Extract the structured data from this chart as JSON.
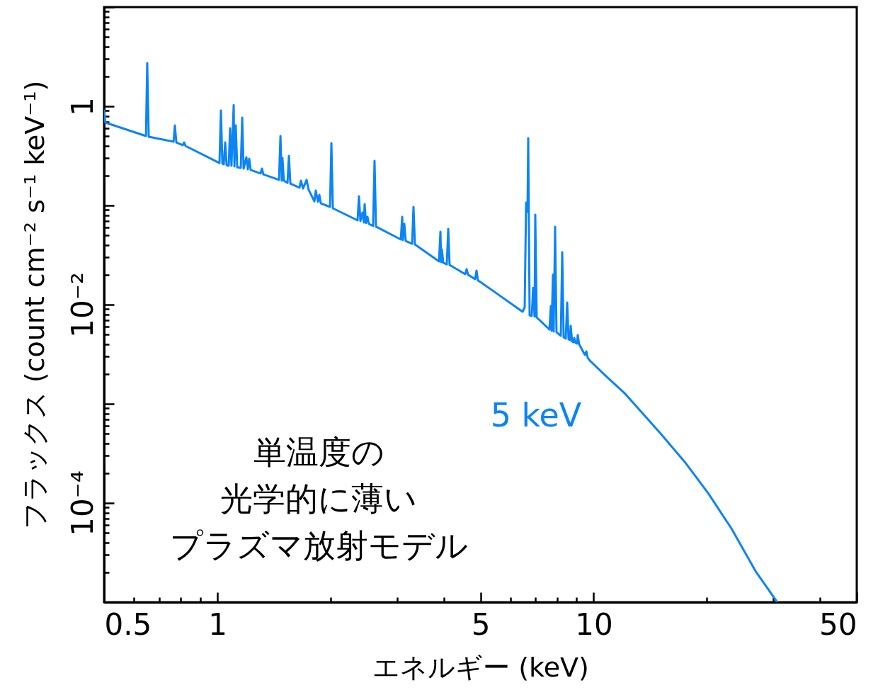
{
  "chart_data": {
    "type": "line",
    "xlabel": "エネルギー (keV)",
    "ylabel": "フラックス (count cm⁻² s⁻¹ keV⁻¹)",
    "log": "xy",
    "grid": false,
    "xlim": [
      0.5,
      50
    ],
    "ylim": [
      1e-05,
      10
    ],
    "xticks": [
      0.5,
      {
        "value": 0.6,
        "label": null
      },
      {
        "value": 0.7,
        "label": null
      },
      {
        "value": 0.8,
        "label": null
      },
      {
        "value": 0.9,
        "label": null
      },
      1,
      {
        "value": 2,
        "label": null
      },
      {
        "value": 3,
        "label": null
      },
      {
        "value": 4,
        "label": null
      },
      5,
      {
        "value": 6,
        "label": null
      },
      {
        "value": 7,
        "label": null
      },
      {
        "value": 8,
        "label": null
      },
      {
        "value": 9,
        "label": null
      },
      10,
      {
        "value": 20,
        "label": null
      },
      {
        "value": 30,
        "label": null
      },
      {
        "value": 40,
        "label": null
      },
      50
    ],
    "yticks": [
      {
        "value": 1e-05,
        "label": null
      },
      {
        "value": 2e-05,
        "label": null
      },
      {
        "value": 3e-05,
        "label": null
      },
      {
        "value": 4e-05,
        "label": null
      },
      {
        "value": 5e-05,
        "label": null
      },
      {
        "value": 6e-05,
        "label": null
      },
      {
        "value": 7e-05,
        "label": null
      },
      {
        "value": 8e-05,
        "label": null
      },
      {
        "value": 9e-05,
        "label": null
      },
      {
        "value": 0.0001,
        "label": "10⁻⁴"
      },
      {
        "value": 0.0002,
        "label": null
      },
      {
        "value": 0.0003,
        "label": null
      },
      {
        "value": 0.0004,
        "label": null
      },
      {
        "value": 0.0005,
        "label": null
      },
      {
        "value": 0.0006,
        "label": null
      },
      {
        "value": 0.0007,
        "label": null
      },
      {
        "value": 0.0008,
        "label": null
      },
      {
        "value": 0.0009,
        "label": null
      },
      {
        "value": 0.001,
        "label": null
      },
      {
        "value": 0.002,
        "label": null
      },
      {
        "value": 0.003,
        "label": null
      },
      {
        "value": 0.004,
        "label": null
      },
      {
        "value": 0.005,
        "label": null
      },
      {
        "value": 0.006,
        "label": null
      },
      {
        "value": 0.007,
        "label": null
      },
      {
        "value": 0.008,
        "label": null
      },
      {
        "value": 0.009,
        "label": null
      },
      {
        "value": 0.01,
        "label": "10⁻²"
      },
      {
        "value": 0.02,
        "label": null
      },
      {
        "value": 0.03,
        "label": null
      },
      {
        "value": 0.04,
        "label": null
      },
      {
        "value": 0.05,
        "label": null
      },
      {
        "value": 0.06,
        "label": null
      },
      {
        "value": 0.07,
        "label": null
      },
      {
        "value": 0.08,
        "label": null
      },
      {
        "value": 0.09,
        "label": null
      },
      {
        "value": 0.1,
        "label": null
      },
      {
        "value": 0.2,
        "label": null
      },
      {
        "value": 0.3,
        "label": null
      },
      {
        "value": 0.4,
        "label": null
      },
      {
        "value": 0.5,
        "label": null
      },
      {
        "value": 0.6,
        "label": null
      },
      {
        "value": 0.7,
        "label": null
      },
      {
        "value": 0.8,
        "label": null
      },
      {
        "value": 0.9,
        "label": null
      },
      1,
      {
        "value": 2,
        "label": null
      },
      {
        "value": 3,
        "label": null
      },
      {
        "value": 4,
        "label": null
      },
      {
        "value": 5,
        "label": null
      },
      {
        "value": 6,
        "label": null
      },
      {
        "value": 7,
        "label": null
      },
      {
        "value": 8,
        "label": null
      },
      {
        "value": 9,
        "label": null
      },
      {
        "value": 10,
        "label": null
      }
    ],
    "series": [
      {
        "name": "5 keV",
        "color": "#0b84f6",
        "x": [
          0.5,
          0.504,
          0.646,
          0.651,
          0.657,
          0.765,
          0.771,
          0.778,
          0.809,
          0.816,
          0.823,
          1.013,
          1.022,
          1.031,
          1.04,
          1.049,
          1.058,
          1.072,
          1.081,
          1.09,
          1.105,
          1.11,
          1.119,
          1.129,
          1.154,
          1.164,
          1.174,
          1.194,
          1.205,
          1.215,
          1.226,
          1.302,
          1.314,
          1.325,
          1.458,
          1.471,
          1.483,
          1.489,
          1.502,
          1.536,
          1.549,
          1.563,
          1.653,
          1.667,
          1.689,
          1.726,
          1.748,
          1.81,
          1.826,
          1.85,
          1.866,
          1.883,
          1.992,
          2.009,
          2.027,
          2.358,
          2.378,
          2.399,
          2.43,
          2.451,
          2.462,
          2.483,
          2.505,
          2.527,
          2.593,
          2.616,
          2.639,
          3.072,
          3.098,
          3.112,
          3.139,
          3.166,
          3.292,
          3.32,
          3.349,
          3.881,
          3.915,
          3.932,
          3.949,
          3.983,
          4.07,
          4.106,
          4.141,
          4.556,
          4.596,
          4.636,
          4.84,
          4.882,
          4.924,
          4.967,
          5.488,
          6.47,
          6.555,
          6.612,
          6.669,
          6.698,
          6.756,
          6.844,
          6.904,
          6.964,
          6.994,
          7.055,
          7.627,
          7.693,
          7.727,
          7.794,
          7.828,
          7.896,
          7.964,
          8.177,
          8.248,
          8.32,
          8.428,
          8.501,
          8.575,
          8.649,
          8.687,
          8.762,
          8.838,
          8.876,
          8.953,
          9.031,
          9.07,
          9.149,
          9.477,
          9.56,
          9.639,
          9.763,
          10.83,
          12.13,
          15.06,
          17.45,
          20.13,
          23.23,
          25,
          26.91,
          30.64
        ],
        "values": [
          0.906,
          0.685,
          0.501,
          2.73,
          0.493,
          0.439,
          0.641,
          0.432,
          0.405,
          0.432,
          0.398,
          0.268,
          0.906,
          0.264,
          0.26,
          0.432,
          0.255,
          0.251,
          0.601,
          0.251,
          1.03,
          0.247,
          0.641,
          0.243,
          0.239,
          0.769,
          0.235,
          0.306,
          0.231,
          0.296,
          0.228,
          0.21,
          0.235,
          0.206,
          0.181,
          0.501,
          0.178,
          0.301,
          0.178,
          0.169,
          0.316,
          0.166,
          0.151,
          0.178,
          0.148,
          0.181,
          0.144,
          0.11,
          0.141,
          0.109,
          0.128,
          0.105,
          0.0968,
          0.425,
          0.0936,
          0.0708,
          0.124,
          0.0697,
          0.0848,
          0.0674,
          0.103,
          0.0663,
          0.0769,
          0.0652,
          0.0621,
          0.282,
          0.0611,
          0.0454,
          0.0769,
          0.0447,
          0.0652,
          0.0439,
          0.0411,
          0.0968,
          0.0405,
          0.0273,
          0.0544,
          0.0268,
          0.0361,
          0.0264,
          0.0255,
          0.0581,
          0.0251,
          0.0203,
          0.0228,
          0.02,
          0.0181,
          0.022,
          0.0175,
          0.0172,
          0.0132,
          0.00848,
          0.00936,
          0.107,
          0.0862,
          0.477,
          0.00781,
          0.00769,
          0.0148,
          0.00756,
          0.0807,
          0.00744,
          0.00562,
          0.00968,
          0.00544,
          0.02,
          0.00535,
          0.0611,
          0.00527,
          0.00485,
          0.0338,
          0.00469,
          0.00454,
          0.0105,
          0.00447,
          0.00439,
          0.00611,
          0.00425,
          0.00418,
          0.00462,
          0.00411,
          0.00405,
          0.00493,
          0.00398,
          0.00311,
          0.00338,
          0.00291,
          0.00273,
          0.00187,
          0.00126,
          0.000501,
          0.00026,
          0.000126,
          5.53e-05,
          3.38e-05,
          2.06e-05,
          1.02e-05
        ]
      }
    ],
    "annotations": [
      "単温度の",
      "光学的に薄い",
      "プラズマ放射モデル"
    ]
  }
}
